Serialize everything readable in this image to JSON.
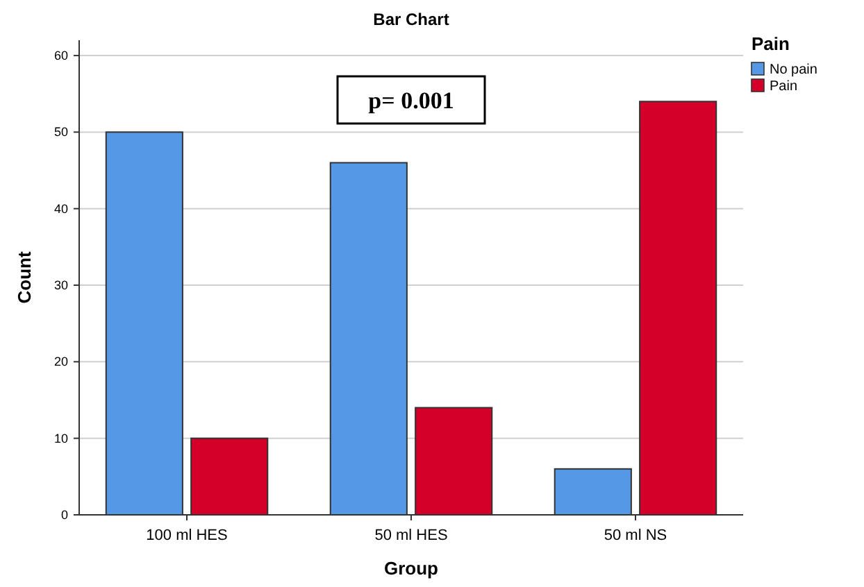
{
  "chart_data": {
    "type": "bar",
    "title": "Bar Chart",
    "xlabel": "Group",
    "ylabel": "Count",
    "legend_title": "Pain",
    "categories": [
      "100 ml HES",
      "50 ml HES",
      "50 ml NS"
    ],
    "series": [
      {
        "name": "No pain",
        "color": "#5599e6",
        "values": [
          50,
          46,
          6
        ]
      },
      {
        "name": "Pain",
        "color": "#d4002a",
        "values": [
          10,
          14,
          54
        ]
      }
    ],
    "ylim": [
      0,
      62
    ],
    "yticks": [
      0,
      10,
      20,
      30,
      40,
      50,
      60
    ],
    "grid": "y",
    "legend": "top right",
    "annotations": [
      "p= 0.001"
    ]
  }
}
